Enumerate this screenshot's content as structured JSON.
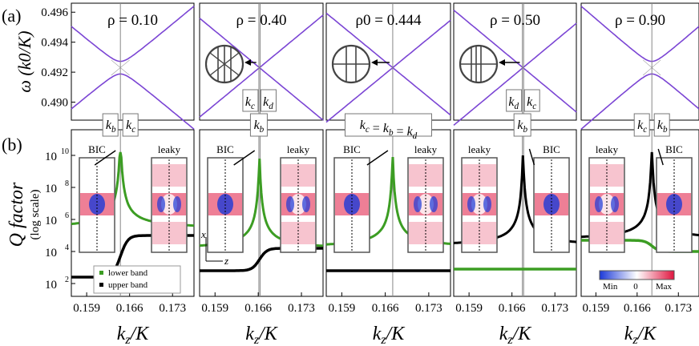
{
  "panel_labels": {
    "a": "(a)",
    "b": "(b)"
  },
  "colors": {
    "band": "#7B45D4",
    "lower": "#3C9D23",
    "upper": "#000000",
    "bic_fill": "#1b39d8",
    "leaky_fill": "#e0153f"
  },
  "top_axis": {
    "ylabel": "ω (k0/K)",
    "yticks": [
      "0.496",
      "0.494",
      "0.492",
      "0.490"
    ],
    "ylim": [
      0.4888,
      0.4966
    ],
    "xlim": [
      0.1565,
      0.1765
    ]
  },
  "bottom_axis": {
    "ylabel": "Q factor",
    "ysublabel": "(log scale)",
    "yticks": [
      {
        "base": "10",
        "exp": "10",
        "value": 10
      },
      {
        "base": "10",
        "exp": "8",
        "value": 8
      },
      {
        "base": "10",
        "exp": "6",
        "value": 6
      },
      {
        "base": "10",
        "exp": "4",
        "value": 4
      },
      {
        "base": "10",
        "exp": "2",
        "value": 2
      }
    ],
    "ylim_log": [
      1.2,
      11.6
    ],
    "xticks": [
      "0.159",
      "0.166",
      "0.173"
    ],
    "xlabel": "kz/K",
    "legend": {
      "lower": "lower band",
      "upper": "upper band"
    },
    "colorbar": {
      "min": "Min",
      "zero": "0",
      "max": "Max"
    },
    "axis_hint": {
      "x": "x",
      "z": "z"
    }
  },
  "chart_data": [
    {
      "type": "line",
      "panel": 1,
      "title": "ρ = 0.10",
      "rho": 0.1,
      "k_cross": 0.1645,
      "gap": 0.00042,
      "slope": 0.34,
      "k_labels": [
        "kb",
        "kc"
      ],
      "lower_band": "bic",
      "vertical_lines": [
        0.1645
      ]
    },
    {
      "type": "line",
      "panel": 2,
      "title": "ρ = 0.40",
      "rho": 0.4,
      "k_cross": 0.1662,
      "gap": 0.0,
      "slope": 0.34,
      "k_labels": [
        "kc",
        "kd"
      ],
      "lower_label": "kb",
      "lower_band": "bic",
      "vertical_lines": [
        0.1661,
        0.1663
      ]
    },
    {
      "type": "line",
      "panel": 3,
      "title": "ρ0 = 0.444",
      "rho": 0.444,
      "k_cross": 0.1672,
      "gap": 0.0,
      "slope": 0.34,
      "k_labels": [],
      "lower_label": "kc = kb = kd",
      "lower_band": "bic",
      "vertical_lines": [
        0.1672
      ]
    },
    {
      "type": "line",
      "panel": 4,
      "title": "ρ = 0.50",
      "rho": 0.5,
      "k_cross": 0.1678,
      "gap": 0.0,
      "slope": 0.34,
      "k_labels": [
        "kd",
        "kc"
      ],
      "lower_label": "kb",
      "lower_band": "leaky",
      "vertical_lines": [
        0.1677,
        0.1679
      ]
    },
    {
      "type": "line",
      "panel": 5,
      "title": "ρ = 0.90",
      "rho": 0.9,
      "k_cross": 0.1685,
      "gap": 0.00042,
      "slope": 0.34,
      "k_labels": [
        "kc",
        "kb"
      ],
      "lower_band": "leaky",
      "vertical_lines": [
        0.1685
      ]
    }
  ],
  "inset_labels": {
    "bic": "BIC",
    "leaky": "leaky"
  }
}
